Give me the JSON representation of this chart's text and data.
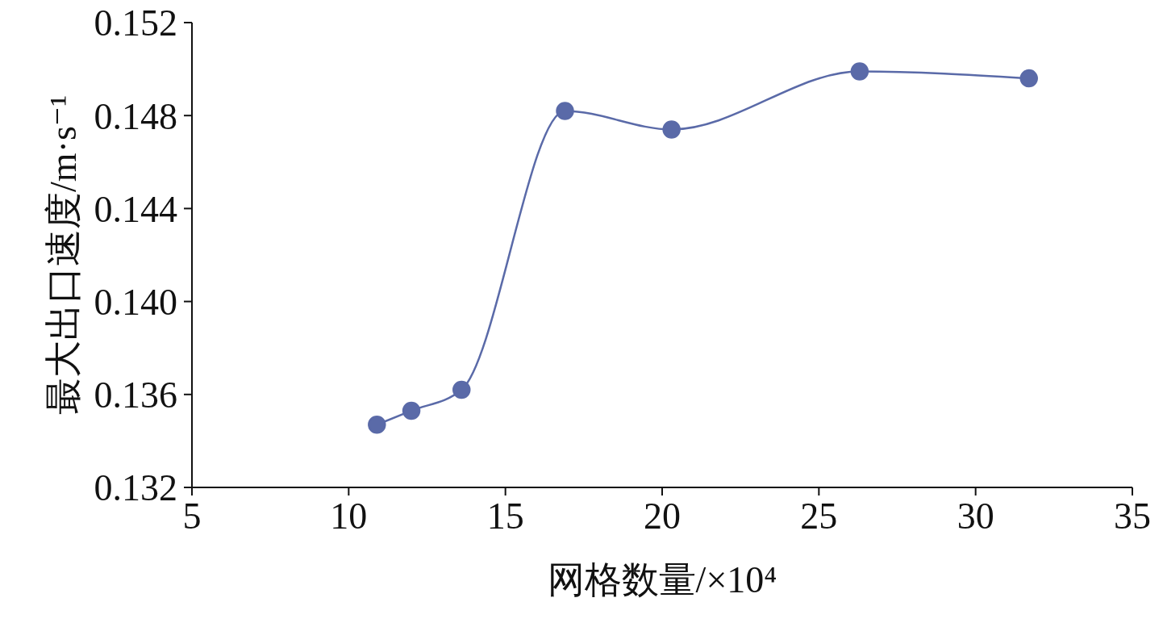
{
  "chart_data": {
    "type": "line",
    "xlabel": "网格数量/×10⁴",
    "ylabel": "最大出口速度/m·s⁻¹",
    "x": [
      10.9,
      12.0,
      13.6,
      16.9,
      20.3,
      26.3,
      31.7
    ],
    "series": [
      {
        "color": "#5a6aa8",
        "values": [
          0.1347,
          0.1353,
          0.1362,
          0.1482,
          0.1474,
          0.1499,
          0.1496
        ]
      }
    ],
    "xlim": [
      5,
      35
    ],
    "xticks": [
      5,
      10,
      15,
      20,
      25,
      30,
      35
    ],
    "ylim": [
      0.132,
      0.152
    ],
    "yticks": [
      0.132,
      0.136,
      {
        "value": 0.14,
        "label": "0.140"
      },
      0.144,
      0.148,
      0.152
    ],
    "grid": false,
    "legend": false,
    "marker": "circle",
    "line_style": "solid"
  }
}
